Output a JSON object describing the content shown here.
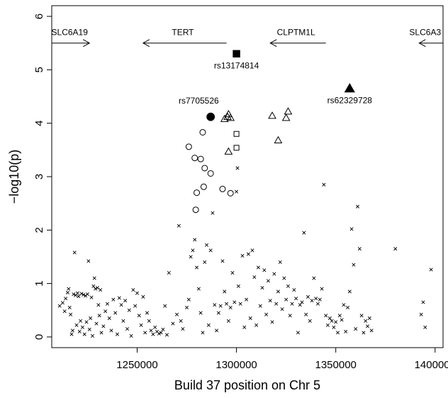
{
  "chart_data": {
    "type": "scatter",
    "xlabel": "Build 37 position on Chr 5",
    "ylabel": "−log10(p)",
    "xlim": [
      1207000,
      1404000
    ],
    "ylim": [
      -0.2,
      6.2
    ],
    "xticks": [
      {
        "value": 1250000,
        "label": "1250000"
      },
      {
        "value": 1300000,
        "label": "1300000"
      },
      {
        "value": 1350000,
        "label": "1350000"
      },
      {
        "value": 1400000,
        "label": "1400000"
      }
    ],
    "yticks": [
      {
        "value": 0,
        "label": "0"
      },
      {
        "value": 1,
        "label": "1"
      },
      {
        "value": 2,
        "label": "2"
      },
      {
        "value": 3,
        "label": "3"
      },
      {
        "value": 4,
        "label": "4"
      },
      {
        "value": 5,
        "label": "5"
      },
      {
        "value": 6,
        "label": "6"
      }
    ],
    "genes": [
      {
        "label": "SLC6A19",
        "start": 1207000,
        "end": 1226000,
        "direction": "right",
        "y": 5.5,
        "label_x": 1216000
      },
      {
        "label": "TERT",
        "start": 1253000,
        "end": 1295000,
        "direction": "left",
        "y": 5.5,
        "label_x": 1273000
      },
      {
        "label": "CLPTM1L",
        "start": 1317000,
        "end": 1345000,
        "direction": "left",
        "y": 5.5,
        "label_x": 1330000
      },
      {
        "label": "SLC6A3",
        "start": 1392000,
        "end": 1404000,
        "direction": "left",
        "y": 5.5,
        "label_x": 1395000
      }
    ],
    "highlighted": [
      {
        "label": "rs13174814",
        "x": 1300000,
        "y": 5.3,
        "shape": "filled-square",
        "label_dx": 0,
        "label_dy": -0.22
      },
      {
        "label": "rs62329728",
        "x": 1357000,
        "y": 4.65,
        "shape": "filled-triangle",
        "label_dx": 0,
        "label_dy": -0.22
      },
      {
        "label": "rs7705526",
        "x": 1287000,
        "y": 4.12,
        "shape": "filled-circle",
        "label_dx": -6000,
        "label_dy": 0.3
      }
    ],
    "series": [
      {
        "shape": "open-triangle",
        "points": [
          [
            1294000,
            4.08
          ],
          [
            1295500,
            4.12
          ],
          [
            1296000,
            4.17
          ],
          [
            1297000,
            4.1
          ],
          [
            1296000,
            3.47
          ],
          [
            1318000,
            4.14
          ],
          [
            1325000,
            4.1
          ],
          [
            1326000,
            4.22
          ],
          [
            1321000,
            3.68
          ]
        ]
      },
      {
        "shape": "open-square",
        "points": [
          [
            1300000,
            3.8
          ],
          [
            1300000,
            3.54
          ]
        ]
      },
      {
        "shape": "open-circle",
        "points": [
          [
            1276000,
            3.56
          ],
          [
            1283000,
            3.83
          ],
          [
            1279000,
            3.35
          ],
          [
            1282000,
            3.33
          ],
          [
            1284000,
            3.16
          ],
          [
            1287000,
            3.06
          ],
          [
            1283500,
            2.81
          ],
          [
            1280000,
            2.7
          ],
          [
            1293000,
            2.77
          ],
          [
            1297000,
            2.69
          ],
          [
            1279500,
            2.38
          ]
        ]
      },
      {
        "shape": "cross",
        "points": [
          [
            1211000,
            0.58
          ],
          [
            1212500,
            0.64
          ],
          [
            1213500,
            0.48
          ],
          [
            1214000,
            0.72
          ],
          [
            1215000,
            0.83
          ],
          [
            1215500,
            0.9
          ],
          [
            1216000,
            0.55
          ],
          [
            1216500,
            0.42
          ],
          [
            1217000,
            0.05
          ],
          [
            1217500,
            0.12
          ],
          [
            1218000,
            0.8
          ],
          [
            1218500,
            1.58
          ],
          [
            1219000,
            0.78
          ],
          [
            1219500,
            0.22
          ],
          [
            1220000,
            0.82
          ],
          [
            1220500,
            0.76
          ],
          [
            1221000,
            0.1
          ],
          [
            1221500,
            0.3
          ],
          [
            1222000,
            0.81
          ],
          [
            1222500,
            0.18
          ],
          [
            1223000,
            0.79
          ],
          [
            1223500,
            0.05
          ],
          [
            1224000,
            0.77
          ],
          [
            1224500,
            0.28
          ],
          [
            1225000,
            0.8
          ],
          [
            1225500,
            1.42
          ],
          [
            1226000,
            0.14
          ],
          [
            1226500,
            0.35
          ],
          [
            1227000,
            0.74
          ],
          [
            1227500,
            0.02
          ],
          [
            1228000,
            0.95
          ],
          [
            1228500,
            1.1
          ],
          [
            1229000,
            0.9
          ],
          [
            1229500,
            0.25
          ],
          [
            1230000,
            0.92
          ],
          [
            1230500,
            0.6
          ],
          [
            1231000,
            0.4
          ],
          [
            1231500,
            0.88
          ],
          [
            1232000,
            0.08
          ],
          [
            1233000,
            0.2
          ],
          [
            1234000,
            0.48
          ],
          [
            1235000,
            0.62
          ],
          [
            1236000,
            0.35
          ],
          [
            1237000,
            0.12
          ],
          [
            1238000,
            0.7
          ],
          [
            1239000,
            0.45
          ],
          [
            1240000,
            0.05
          ],
          [
            1241000,
            0.73
          ],
          [
            1242000,
            0.6
          ],
          [
            1243000,
            0.3
          ],
          [
            1244000,
            0.68
          ],
          [
            1245000,
            0.15
          ],
          [
            1246000,
            0.5
          ],
          [
            1247000,
            0.02
          ],
          [
            1248000,
            0.88
          ],
          [
            1249000,
            0.58
          ],
          [
            1250000,
            0.82
          ],
          [
            1251000,
            0.4
          ],
          [
            1252000,
            0.22
          ],
          [
            1253000,
            0.75
          ],
          [
            1254000,
            0.08
          ],
          [
            1255000,
            0.45
          ],
          [
            1256000,
            0.3
          ],
          [
            1257000,
            0.12
          ],
          [
            1258000,
            0.05
          ],
          [
            1259000,
            0.18
          ],
          [
            1260000,
            0.1
          ],
          [
            1261000,
            0.06
          ],
          [
            1262000,
            0.08
          ],
          [
            1263000,
            0.14
          ],
          [
            1264000,
            0.58
          ],
          [
            1265000,
            0.04
          ],
          [
            1266000,
            1.2
          ],
          [
            1268000,
            0.25
          ],
          [
            1270000,
            0.42
          ],
          [
            1271000,
            2.08
          ],
          [
            1272000,
            0.3
          ],
          [
            1273000,
            0.15
          ],
          [
            1275000,
            0.55
          ],
          [
            1276000,
            0.7
          ],
          [
            1277000,
            1.5
          ],
          [
            1278000,
            1.62
          ],
          [
            1279000,
            1.82
          ],
          [
            1280000,
            1.3
          ],
          [
            1281000,
            0.9
          ],
          [
            1282000,
            0.45
          ],
          [
            1283000,
            0.08
          ],
          [
            1284000,
            1.4
          ],
          [
            1285000,
            1.72
          ],
          [
            1286000,
            0.22
          ],
          [
            1287000,
            1.62
          ],
          [
            1288000,
            2.32
          ],
          [
            1289000,
            0.6
          ],
          [
            1290000,
            0.12
          ],
          [
            1291000,
            0.45
          ],
          [
            1292000,
            0.58
          ],
          [
            1293000,
            1.42
          ],
          [
            1294000,
            0.85
          ],
          [
            1295000,
            0.62
          ],
          [
            1296000,
            0.3
          ],
          [
            1297000,
            0.55
          ],
          [
            1298000,
            1.2
          ],
          [
            1299000,
            0.65
          ],
          [
            1300000,
            2.72
          ],
          [
            1300500,
            3.16
          ],
          [
            1301000,
            0.95
          ],
          [
            1302000,
            0.62
          ],
          [
            1303000,
            1.52
          ],
          [
            1304000,
            0.18
          ],
          [
            1305000,
            0.7
          ],
          [
            1306000,
            1.55
          ],
          [
            1307000,
            0.35
          ],
          [
            1308000,
            1.62
          ],
          [
            1309000,
            1.12
          ],
          [
            1310000,
            0.22
          ],
          [
            1311000,
            1.3
          ],
          [
            1312000,
            0.58
          ],
          [
            1313000,
            0.92
          ],
          [
            1314000,
            1.25
          ],
          [
            1315000,
            0.42
          ],
          [
            1316000,
            1.05
          ],
          [
            1317000,
            0.68
          ],
          [
            1318000,
            0.28
          ],
          [
            1319000,
            1.18
          ],
          [
            1320000,
            0.62
          ],
          [
            1321000,
            0.85
          ],
          [
            1322000,
            1.4
          ],
          [
            1323000,
            0.52
          ],
          [
            1324000,
            1.1
          ],
          [
            1325000,
            0.7
          ],
          [
            1326000,
            0.95
          ],
          [
            1327000,
            0.4
          ],
          [
            1328000,
            0.62
          ],
          [
            1329000,
            0.88
          ],
          [
            1330000,
            0.72
          ],
          [
            1331000,
            0.08
          ],
          [
            1332000,
            0.6
          ],
          [
            1333000,
            0.65
          ],
          [
            1334000,
            1.95
          ],
          [
            1335000,
            0.42
          ],
          [
            1336000,
            0.75
          ],
          [
            1337000,
            0.3
          ],
          [
            1338000,
            0.68
          ],
          [
            1339000,
            1.1
          ],
          [
            1340000,
            0.72
          ],
          [
            1341000,
            0.62
          ],
          [
            1342000,
            0.7
          ],
          [
            1343000,
            0.9
          ],
          [
            1344000,
            2.85
          ],
          [
            1345000,
            0.4
          ],
          [
            1346000,
            0.22
          ],
          [
            1347000,
            0.35
          ],
          [
            1348000,
            0.3
          ],
          [
            1349000,
            0.18
          ],
          [
            1350000,
            0.28
          ],
          [
            1351000,
            0.08
          ],
          [
            1352000,
            0.4
          ],
          [
            1353000,
            0.32
          ],
          [
            1354000,
            0.6
          ],
          [
            1355000,
            0.1
          ],
          [
            1356000,
            0.55
          ],
          [
            1357000,
            0.85
          ],
          [
            1358000,
            2.02
          ],
          [
            1359000,
            1.35
          ],
          [
            1360000,
            0.15
          ],
          [
            1361000,
            2.44
          ],
          [
            1362000,
            1.65
          ],
          [
            1363000,
            0.4
          ],
          [
            1364000,
            0.08
          ],
          [
            1365000,
            0.3
          ],
          [
            1366000,
            0.2
          ],
          [
            1367000,
            0.35
          ],
          [
            1368000,
            0.12
          ],
          [
            1380000,
            1.65
          ],
          [
            1393000,
            0.42
          ],
          [
            1394000,
            0.65
          ],
          [
            1395000,
            0.18
          ],
          [
            1398000,
            1.26
          ]
        ]
      }
    ]
  }
}
